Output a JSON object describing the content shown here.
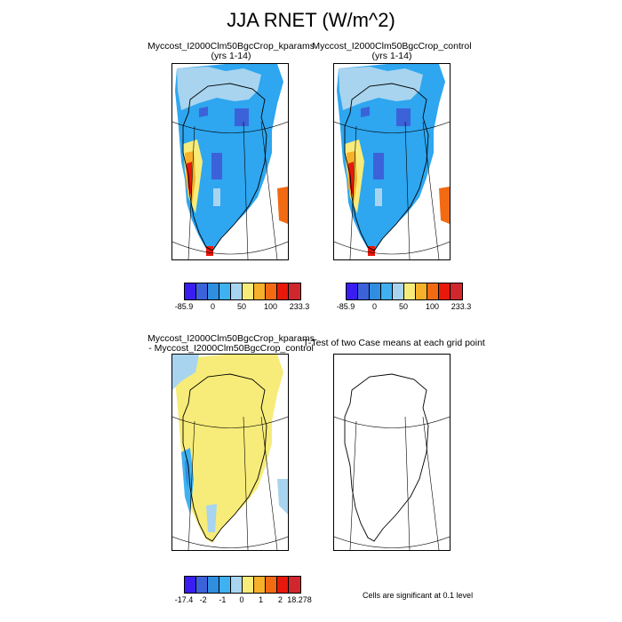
{
  "title": "JJA RNET (W/m^2)",
  "panels": [
    {
      "line1": "Myccost_I2000Clm50BgcCrop_kparams",
      "line2": "(yrs 1-14)"
    },
    {
      "line1": "Myccost_I2000Clm50BgcCrop_control",
      "line2": "(yrs 1-14)"
    },
    {
      "line1": "Myccost_I2000Clm50BgcCrop_kparams",
      "line2": "- Myccost_I2000Clm50BgcCrop_control"
    },
    {
      "line1": "T-Test of two Case means at each grid point",
      "line2": ""
    }
  ],
  "colorbar_main": {
    "colors": [
      "#3a1df0",
      "#3c62d9",
      "#2f8ee0",
      "#3fb1f0",
      "#a8d4ef",
      "#f7ec79",
      "#f7b02a",
      "#f26a12",
      "#e8180b",
      "#d0272e"
    ],
    "labels": [
      "-85.9",
      "0",
      "50",
      "100",
      "233.3"
    ]
  },
  "colorbar_diff": {
    "colors": [
      "#3a1df0",
      "#3c62d9",
      "#2f8ee0",
      "#3fb1f0",
      "#a8d4ef",
      "#f7ec79",
      "#f7b02a",
      "#f26a12",
      "#e8180b",
      "#d0272e"
    ],
    "labels": [
      "-17.4",
      "-2",
      "-1",
      "0",
      "1",
      "2",
      "18.278"
    ]
  },
  "significance_note": "Cells are significant at 0.1 level"
}
